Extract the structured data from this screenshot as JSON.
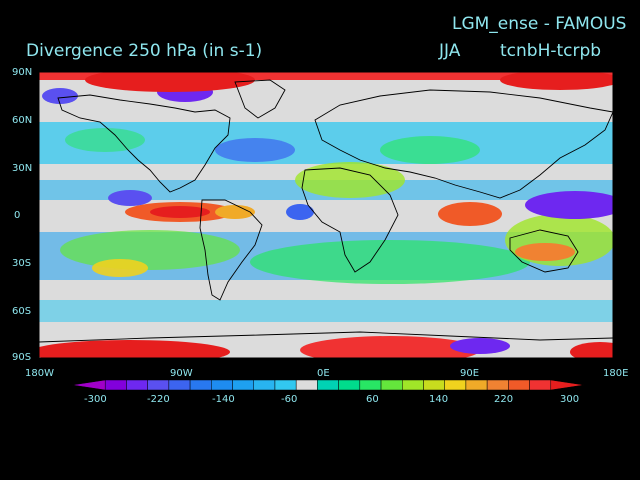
{
  "header": {
    "model_title": "LGM_ense - FAMOUS",
    "field_title": "Divergence   250 hPa  (in s-1)",
    "season": "JJA",
    "experiment": "tcnbH-tcrpb"
  },
  "axes": {
    "lat_labels": [
      "90N",
      "60N",
      "30N",
      "0",
      "30S",
      "60S",
      "90S"
    ],
    "lon_labels": [
      "180W",
      "90W",
      "0E",
      "90E",
      "180E"
    ]
  },
  "colorbar": {
    "tick_labels": [
      "-300",
      "-220",
      "-140",
      "-60",
      "60",
      "140",
      "220",
      "300"
    ],
    "colors": [
      "#a000c8",
      "#8200dc",
      "#6e28f0",
      "#5a50f0",
      "#3c64f0",
      "#2878f0",
      "#1e8cf0",
      "#1ea0f0",
      "#28b4f0",
      "#32c8f0",
      "#dcdcdc",
      "#00d2b4",
      "#00dc8c",
      "#28e664",
      "#64e63c",
      "#a0e628",
      "#c8dc1e",
      "#f0d21e",
      "#f0aa28",
      "#f08232",
      "#f05a28",
      "#f03232",
      "#e61e1e"
    ]
  },
  "map_colors": {
    "background": "#000000",
    "coast": "#000000",
    "neutral": "#dcdcdc"
  }
}
